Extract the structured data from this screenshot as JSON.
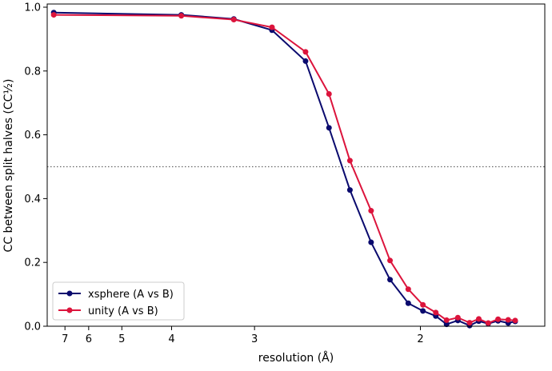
{
  "chart_data": {
    "type": "line",
    "title": "",
    "xlabel": "resolution (Å)",
    "ylabel": "CC between split halves (CC½)",
    "x_scale": "reciprocal",
    "x_tick_labels": [
      "7",
      "6",
      "5",
      "4",
      "3",
      "2"
    ],
    "y_tick_labels": [
      "0.0",
      "0.2",
      "0.4",
      "0.6",
      "0.8",
      "1.0"
    ],
    "xlim_resolution": [
      8.0,
      1.6
    ],
    "ylim": [
      0,
      1.01
    ],
    "reference_line": {
      "y": 0.5,
      "style": "dotted",
      "color": "#666666"
    },
    "legend_position": "lower-left",
    "grid": false,
    "series": [
      {
        "name": "xsphere  (A vs B)",
        "color": "#0a0a6e",
        "points": [
          [
            7.6,
            0.983
          ],
          [
            3.85,
            0.976
          ],
          [
            3.2,
            0.963
          ],
          [
            2.85,
            0.928
          ],
          [
            2.6,
            0.831
          ],
          [
            2.45,
            0.622
          ],
          [
            2.33,
            0.427
          ],
          [
            2.22,
            0.263
          ],
          [
            2.13,
            0.146
          ],
          [
            2.05,
            0.072
          ],
          [
            1.99,
            0.048
          ],
          [
            1.94,
            0.032
          ],
          [
            1.9,
            0.006
          ],
          [
            1.86,
            0.018
          ],
          [
            1.82,
            0.002
          ],
          [
            1.79,
            0.016
          ],
          [
            1.76,
            0.008
          ],
          [
            1.73,
            0.017
          ],
          [
            1.7,
            0.01
          ],
          [
            1.68,
            0.015
          ]
        ]
      },
      {
        "name": "unity  (A vs B)",
        "color": "#dc143c",
        "points": [
          [
            7.6,
            0.976
          ],
          [
            3.85,
            0.973
          ],
          [
            3.2,
            0.961
          ],
          [
            2.85,
            0.937
          ],
          [
            2.6,
            0.86
          ],
          [
            2.45,
            0.728
          ],
          [
            2.33,
            0.519
          ],
          [
            2.22,
            0.362
          ],
          [
            2.13,
            0.206
          ],
          [
            2.05,
            0.116
          ],
          [
            1.99,
            0.067
          ],
          [
            1.94,
            0.043
          ],
          [
            1.9,
            0.019
          ],
          [
            1.86,
            0.027
          ],
          [
            1.82,
            0.011
          ],
          [
            1.79,
            0.023
          ],
          [
            1.76,
            0.01
          ],
          [
            1.73,
            0.022
          ],
          [
            1.7,
            0.02
          ],
          [
            1.68,
            0.018
          ]
        ]
      }
    ]
  }
}
